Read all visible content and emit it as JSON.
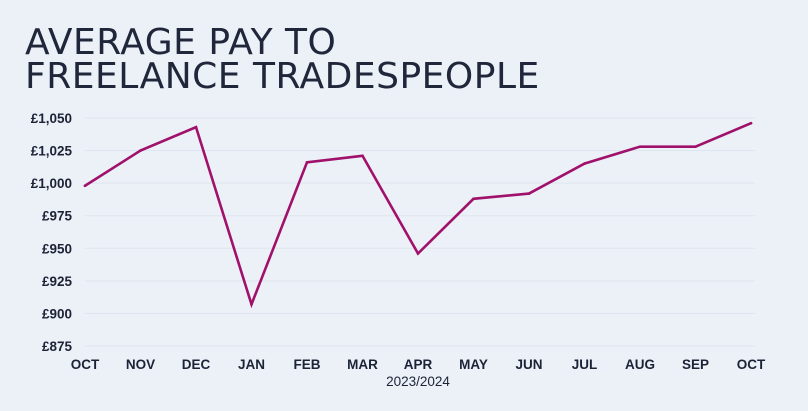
{
  "title_lines": [
    "AVERAGE PAY TO",
    "FREELANCE TRADESPEOPLE"
  ],
  "colors": {
    "background": "#ecf1f8",
    "line": "#a0116b",
    "text": "#1d2336",
    "grid": "#dfe5ee"
  },
  "chart_data": {
    "type": "line",
    "title": "AVERAGE PAY TO FREELANCE TRADESPEOPLE",
    "xlabel": "2023/2024",
    "ylabel": "",
    "categories": [
      "OCT",
      "NOV",
      "DEC",
      "JAN",
      "FEB",
      "MAR",
      "APR",
      "MAY",
      "JUN",
      "JUL",
      "AUG",
      "SEP",
      "OCT"
    ],
    "series": [
      {
        "values": [
          998,
          1025,
          1043,
          907,
          1016,
          1021,
          946,
          988,
          992,
          1015,
          1028,
          1028,
          1046
        ]
      }
    ],
    "ylim": [
      875,
      1050
    ],
    "yticks": [
      875,
      900,
      925,
      950,
      975,
      1000,
      1025,
      1050
    ],
    "ytick_labels": [
      "£875",
      "£900",
      "£925",
      "£950",
      "£975",
      "£1,000",
      "£1,025",
      "£1,050"
    ],
    "grid": true,
    "legend": "none"
  }
}
